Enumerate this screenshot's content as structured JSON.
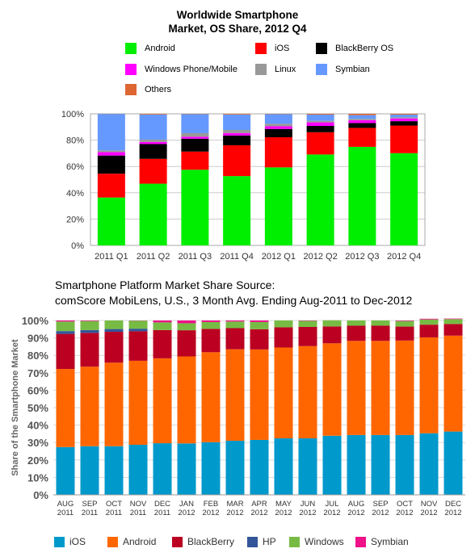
{
  "chart_data": [
    {
      "type": "bar",
      "stacked": true,
      "title_lines": [
        "Worldwide Smartphone",
        "Market, OS Share, 2012 Q4"
      ],
      "categories": [
        "2011 Q1",
        "2011 Q2",
        "2011 Q3",
        "2011 Q4",
        "2012 Q1",
        "2012 Q2",
        "2012 Q3",
        "2012 Q4"
      ],
      "y_ticks": [
        "0%",
        "20%",
        "40%",
        "60%",
        "80%",
        "100%"
      ],
      "ylim": [
        0,
        100
      ],
      "grid": true,
      "legend_position": "top",
      "series": [
        {
          "name": "Android",
          "color": "#00ee00",
          "values": [
            36.4,
            46.9,
            57.5,
            52.7,
            59.3,
            69.1,
            74.9,
            70.1
          ]
        },
        {
          "name": "iOS",
          "color": "#ff0000",
          "values": [
            18.1,
            18.9,
            13.8,
            23.4,
            22.9,
            16.9,
            14.4,
            21.0
          ]
        },
        {
          "name": "BlackBerry OS",
          "color": "#000000",
          "values": [
            13.8,
            11.2,
            9.8,
            7.4,
            6.3,
            4.8,
            3.7,
            3.3
          ]
        },
        {
          "name": "Windows Phone/Mobile",
          "color": "#ff00ff",
          "values": [
            2.6,
            1.6,
            1.5,
            1.9,
            2.0,
            2.7,
            2.2,
            2.1
          ]
        },
        {
          "name": "Linux",
          "color": "#999999",
          "values": [
            1.3,
            1.8,
            2.7,
            2.3,
            1.9,
            1.2,
            1.0,
            0.8
          ]
        },
        {
          "name": "Symbian",
          "color": "#6699ff",
          "values": [
            27.7,
            19.1,
            14.5,
            11.8,
            7.4,
            4.7,
            2.8,
            2.1
          ]
        },
        {
          "name": "Others",
          "color": "#dd6633",
          "values": [
            0.1,
            0.5,
            0.2,
            0.5,
            0.2,
            0.6,
            1.0,
            0.6
          ]
        }
      ]
    },
    {
      "type": "bar",
      "stacked": true,
      "title_lines": [
        "Smartphone Platform Market Share Source:",
        "comScore MobiLens, U.S., 3 Month Avg. Ending Aug-2011 to Dec-2012"
      ],
      "ylabel": "Share of the Smartphone Market",
      "categories": [
        [
          "AUG",
          "2011"
        ],
        [
          "SEP",
          "2011"
        ],
        [
          "OCT",
          "2011"
        ],
        [
          "NOV",
          "2011"
        ],
        [
          "DEC",
          "2011"
        ],
        [
          "JAN",
          "2012"
        ],
        [
          "FEB",
          "2012"
        ],
        [
          "MAR",
          "2012"
        ],
        [
          "APR",
          "2012"
        ],
        [
          "MAY",
          "2012"
        ],
        [
          "JUN",
          "2012"
        ],
        [
          "JUL",
          "2012"
        ],
        [
          "AUG",
          "2012"
        ],
        [
          "SEP",
          "2012"
        ],
        [
          "OCT",
          "2012"
        ],
        [
          "NOV",
          "2012"
        ],
        [
          "DEC",
          "2012"
        ]
      ],
      "y_ticks": [
        "0%",
        "10%",
        "20%",
        "30%",
        "40%",
        "50%",
        "60%",
        "70%",
        "80%",
        "90%",
        "100%"
      ],
      "ylim": [
        0,
        100
      ],
      "grid": true,
      "legend_position": "bottom",
      "series": [
        {
          "name": "iOS",
          "color": "#0099cc",
          "values": [
            27.4,
            27.9,
            27.9,
            28.7,
            29.6,
            29.5,
            30.2,
            31.0,
            31.5,
            32.4,
            32.4,
            33.9,
            34.3,
            34.3,
            34.3,
            35.3,
            36.3
          ]
        },
        {
          "name": "Android",
          "color": "#ff6600",
          "values": [
            44.8,
            45.6,
            47.9,
            48.2,
            48.7,
            49.9,
            51.6,
            52.5,
            51.9,
            52.1,
            52.9,
            53.0,
            54.0,
            54.0,
            54.2,
            55.0,
            55.0
          ]
        },
        {
          "name": "BlackBerry",
          "color": "#bb0022",
          "values": [
            20.1,
            19.4,
            17.7,
            16.9,
            16.2,
            15.0,
            13.4,
            12.1,
            11.6,
            11.6,
            11.0,
            9.7,
            8.7,
            8.7,
            8.0,
            7.3,
            6.7
          ]
        },
        {
          "name": "HP",
          "color": "#335599",
          "values": [
            1.6,
            1.6,
            1.6,
            1.5,
            0.0,
            0.0,
            0.0,
            0.0,
            0.0,
            0.0,
            0.0,
            0.0,
            0.0,
            0.0,
            0.0,
            0.0,
            0.0
          ]
        },
        {
          "name": "Windows",
          "color": "#77bb44",
          "values": [
            5.5,
            5.2,
            4.9,
            4.6,
            4.4,
            4.0,
            3.9,
            3.8,
            4.1,
            3.9,
            3.5,
            3.5,
            3.0,
            3.0,
            3.2,
            3.0,
            2.8
          ]
        },
        {
          "name": "Symbian",
          "color": "#ee1188",
          "values": [
            0.6,
            0.3,
            0.0,
            0.1,
            1.1,
            1.6,
            0.9,
            0.6,
            0.9,
            0.0,
            0.2,
            0.0,
            0.0,
            0.0,
            0.3,
            0.4,
            0.3
          ]
        }
      ]
    }
  ]
}
